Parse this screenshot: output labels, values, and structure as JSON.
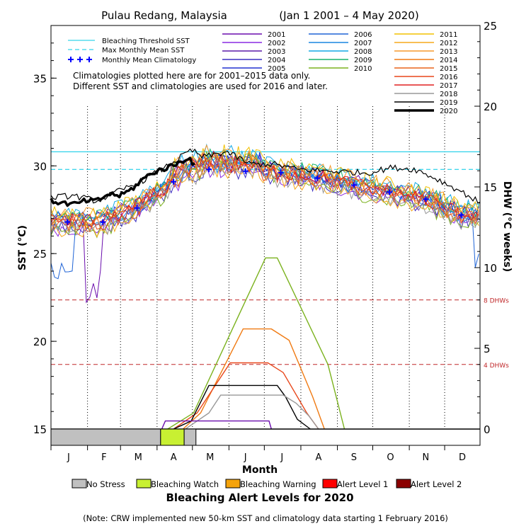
{
  "chart_data": {
    "type": "line",
    "title": "Pulau Redang, Malaysia",
    "date_range": "(Jan 1 2001 – 4 May 2020)",
    "xlabel": "Month",
    "ylabel_left": "SST (°C)",
    "ylabel_right": "DHW (°C weeks)",
    "months": [
      "J",
      "F",
      "M",
      "A",
      "M",
      "J",
      "J",
      "A",
      "S",
      "O",
      "N",
      "D"
    ],
    "sst_ylim": [
      15,
      38
    ],
    "sst_ticks": [
      15,
      20,
      25,
      30,
      35
    ],
    "dhw_ylim": [
      0,
      25
    ],
    "dhw_ticks": [
      0,
      5,
      10,
      15,
      20,
      25
    ],
    "bleaching_threshold_sst": 30.8,
    "max_monthly_mean_sst": 29.8,
    "dhw_reference_lines": [
      {
        "value": 8,
        "label": "8 DHWs"
      },
      {
        "value": 4,
        "label": "4 DHWs"
      }
    ],
    "monthly_mean_climatology": {
      "days": [
        15,
        45,
        74,
        105,
        135,
        166,
        196,
        227,
        258,
        288,
        319,
        349
      ],
      "values": [
        26.8,
        26.8,
        27.6,
        29.1,
        29.8,
        29.7,
        29.6,
        29.3,
        28.9,
        28.5,
        28.1,
        27.2
      ]
    },
    "legend_reference": [
      {
        "label": "Bleaching Threshold SST",
        "color": "#00c8e6",
        "style": "solid"
      },
      {
        "label": "Max Monthly Mean SST",
        "color": "#00c8e6",
        "style": "dashed"
      },
      {
        "label": "Monthly Mean Climatology",
        "color": "#0000ff",
        "style": "crosses"
      }
    ],
    "climatology_note": [
      "Climatologies plotted here are for 2001–2015 data only.",
      "Different SST and climatologies are used for 2016 and later."
    ],
    "years": [
      {
        "year": "2001",
        "color": "#6a0dad"
      },
      {
        "year": "2002",
        "color": "#8a2be2"
      },
      {
        "year": "2003",
        "color": "#5b1ba8"
      },
      {
        "year": "2004",
        "color": "#3b2ec0"
      },
      {
        "year": "2005",
        "color": "#2030d0"
      },
      {
        "year": "2006",
        "color": "#1e63d6"
      },
      {
        "year": "2007",
        "color": "#1a86e0"
      },
      {
        "year": "2008",
        "color": "#14a8e6"
      },
      {
        "year": "2009",
        "color": "#19b36b"
      },
      {
        "year": "2010",
        "color": "#7bb21e"
      },
      {
        "year": "2011",
        "color": "#f2c000"
      },
      {
        "year": "2012",
        "color": "#f5a81c"
      },
      {
        "year": "2013",
        "color": "#f59a2e"
      },
      {
        "year": "2014",
        "color": "#f07a12"
      },
      {
        "year": "2015",
        "color": "#e8641a"
      },
      {
        "year": "2016",
        "color": "#e8461a"
      },
      {
        "year": "2017",
        "color": "#e02020"
      },
      {
        "year": "2018",
        "color": "#999999"
      },
      {
        "year": "2019",
        "color": "#000000"
      },
      {
        "year": "2020",
        "color": "#000000"
      }
    ],
    "sst_2020": {
      "days": [
        1,
        10,
        20,
        30,
        40,
        50,
        60,
        70,
        80,
        90,
        100,
        110,
        118,
        124
      ],
      "values": [
        28.0,
        27.9,
        27.8,
        28.0,
        28.0,
        28.4,
        28.3,
        28.7,
        29.3,
        29.7,
        29.9,
        30.2,
        30.5,
        29.9
      ]
    },
    "sst_2019": {
      "days": [
        1,
        20,
        40,
        60,
        80,
        100,
        120,
        130,
        150,
        170,
        190,
        210,
        240,
        270,
        290,
        310,
        330,
        350,
        365
      ],
      "values": [
        28.2,
        28.3,
        28.0,
        28.6,
        29.2,
        30.0,
        30.9,
        30.5,
        30.8,
        30.1,
        30.1,
        29.8,
        29.7,
        29.6,
        29.9,
        29.8,
        29.2,
        28.5,
        27.9
      ]
    },
    "dhw_series": [
      {
        "year": "2010",
        "days": [
          100,
          122,
          160,
          183,
          193,
          236,
          250
        ],
        "values": [
          0,
          1,
          7,
          10.6,
          10.6,
          4,
          0
        ]
      },
      {
        "year": "2014",
        "days": [
          113,
          128,
          164,
          188,
          203,
          223,
          233
        ],
        "values": [
          0,
          1,
          6.2,
          6.2,
          5.5,
          2,
          0
        ]
      },
      {
        "year": "2016",
        "days": [
          105,
          125,
          153,
          185,
          198,
          218,
          228
        ],
        "values": [
          0,
          1,
          4.1,
          4.1,
          3.5,
          1,
          0
        ]
      },
      {
        "year": "2019",
        "days": [
          105,
          120,
          135,
          162,
          193,
          200,
          210,
          221
        ],
        "values": [
          0,
          0.5,
          2.7,
          2.7,
          2.7,
          2.0,
          0.6,
          0
        ]
      },
      {
        "year": "2018",
        "days": [
          115,
          135,
          145,
          198,
          209,
          220,
          228
        ],
        "values": [
          0,
          1,
          2.1,
          2.1,
          1.6,
          0.8,
          0
        ]
      },
      {
        "year": "2001",
        "days": [
          95,
          98,
          118,
          178,
          186,
          188
        ],
        "values": [
          0,
          0.5,
          0.5,
          0.5,
          0.5,
          0
        ]
      }
    ],
    "alert_timeline_2020": [
      {
        "from_day": 1,
        "to_day": 94,
        "level": "No Stress",
        "color": "#c0c0c0"
      },
      {
        "from_day": 94,
        "to_day": 114,
        "level": "Bleaching Watch",
        "color": "#c8f032"
      },
      {
        "from_day": 114,
        "to_day": 124,
        "level": "No Stress",
        "color": "#c0c0c0"
      }
    ],
    "alert_legend": [
      {
        "label": "No Stress",
        "color": "#c0c0c0"
      },
      {
        "label": "Bleaching Watch",
        "color": "#c8f032"
      },
      {
        "label": "Bleaching Warning",
        "color": "#f5a30a"
      },
      {
        "label": "Alert Level 1",
        "color": "#ff0000"
      },
      {
        "label": "Alert Level 2",
        "color": "#8b0000"
      }
    ],
    "alert_title": "Bleaching Alert Levels for 2020",
    "footnote": "(Note: CRW implemented new 50-km SST and climatology data starting 1 February 2016)"
  }
}
